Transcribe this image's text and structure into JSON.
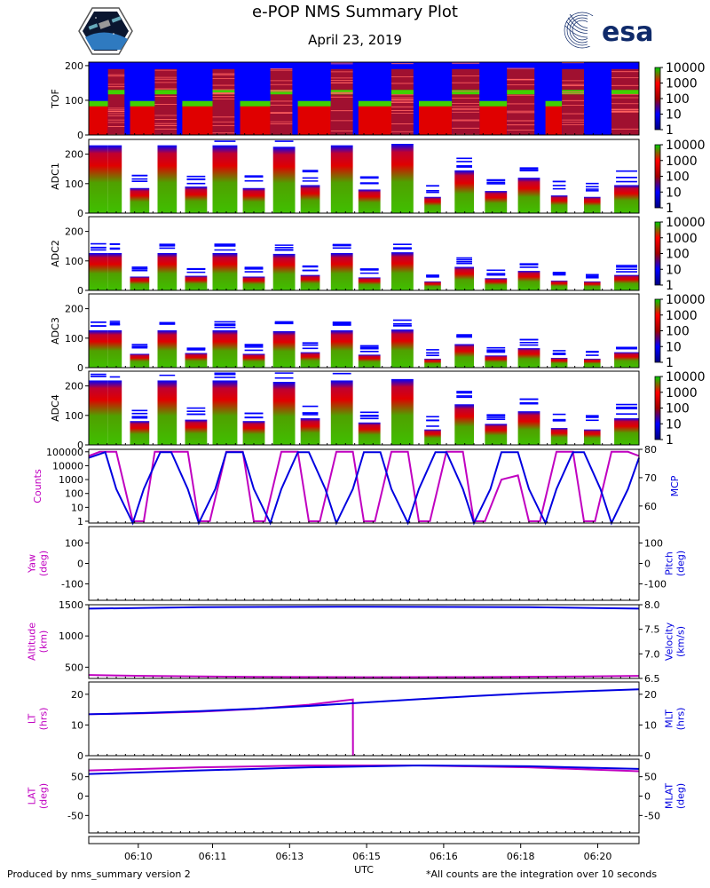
{
  "title": "e-POP NMS Summary Plot",
  "date": "April 23, 2019",
  "logos": {
    "left": "e-POP mission patch",
    "right": "esa"
  },
  "footer": {
    "left": "Produced by nms_summary version 2",
    "right": "*All counts are the integration over 10 seconds"
  },
  "colors": {
    "magenta": "#c000c0",
    "blue": "#0000e0",
    "esa": "#0f2a6a"
  },
  "chart_data": [
    {
      "type": "heatmap",
      "panel": "TOF",
      "ylabel": "TOF",
      "ylim": [
        0,
        210
      ],
      "yticks": [
        0,
        100,
        200
      ],
      "colorbar": {
        "scale": "log",
        "ticks": [
          "1",
          "10",
          "100",
          "1000",
          "10000"
        ]
      }
    },
    {
      "type": "heatmap",
      "panel": "ADC1",
      "ylabel": "ADC1",
      "ylim": [
        0,
        250
      ],
      "yticks": [
        0,
        100,
        200
      ],
      "colorbar": {
        "scale": "log",
        "ticks": [
          "1",
          "10",
          "100",
          "1000",
          "10000"
        ]
      }
    },
    {
      "type": "heatmap",
      "panel": "ADC2",
      "ylabel": "ADC2",
      "ylim": [
        0,
        250
      ],
      "yticks": [
        0,
        100,
        200
      ],
      "colorbar": {
        "scale": "log",
        "ticks": [
          "1",
          "10",
          "100",
          "1000",
          "10000"
        ]
      }
    },
    {
      "type": "heatmap",
      "panel": "ADC3",
      "ylabel": "ADC3",
      "ylim": [
        0,
        250
      ],
      "yticks": [
        0,
        100,
        200
      ],
      "colorbar": {
        "scale": "log",
        "ticks": [
          "1",
          "10",
          "100",
          "1000",
          "10000"
        ]
      }
    },
    {
      "type": "heatmap",
      "panel": "ADC4",
      "ylabel": "ADC4",
      "ylim": [
        0,
        250
      ],
      "yticks": [
        0,
        100,
        200
      ],
      "colorbar": {
        "scale": "log",
        "ticks": [
          "1",
          "10",
          "100",
          "1000",
          "10000"
        ]
      }
    },
    {
      "type": "line",
      "panel": "Counts/MCP",
      "ylabel": "Counts",
      "ylabel_right": "MCP",
      "yticks": [
        "1",
        "10",
        "100",
        "1000",
        "10000",
        "100000"
      ],
      "yticks_right": [
        60,
        70,
        80
      ],
      "ylim_right": [
        54,
        80
      ],
      "series": [
        {
          "name": "Counts",
          "color": "magenta",
          "x": [
            0,
            0.02,
            0.05,
            0.08,
            0.1,
            0.12,
            0.15,
            0.18,
            0.2,
            0.22,
            0.25,
            0.28,
            0.3,
            0.32,
            0.35,
            0.38,
            0.4,
            0.42,
            0.45,
            0.48,
            0.5,
            0.52,
            0.55,
            0.58,
            0.6,
            0.62,
            0.65,
            0.68,
            0.7,
            0.72,
            0.75,
            0.78,
            0.8,
            0.82,
            0.85,
            0.88,
            0.9,
            0.92,
            0.95,
            0.98,
            1.0
          ],
          "y": [
            50000,
            100000,
            100000,
            1,
            1,
            100000,
            100000,
            100000,
            1,
            1,
            100000,
            100000,
            1,
            1,
            100000,
            100000,
            1,
            1,
            100000,
            100000,
            1,
            1,
            100000,
            100000,
            1,
            1,
            100000,
            100000,
            1,
            1,
            1000,
            2000,
            1,
            1,
            100000,
            100000,
            1,
            1,
            100000,
            100000,
            50000
          ]
        },
        {
          "name": "MCP",
          "color": "blue",
          "x": [
            0,
            0.03,
            0.05,
            0.08,
            0.1,
            0.13,
            0.15,
            0.18,
            0.2,
            0.23,
            0.25,
            0.28,
            0.3,
            0.33,
            0.35,
            0.38,
            0.4,
            0.43,
            0.45,
            0.48,
            0.5,
            0.53,
            0.55,
            0.58,
            0.6,
            0.63,
            0.65,
            0.68,
            0.7,
            0.73,
            0.75,
            0.78,
            0.8,
            0.83,
            0.85,
            0.88,
            0.9,
            0.93,
            0.95,
            0.98,
            1.0
          ],
          "y": [
            77,
            79,
            66,
            54,
            66,
            79,
            79,
            66,
            54,
            66,
            79,
            79,
            66,
            54,
            66,
            79,
            79,
            66,
            54,
            66,
            79,
            79,
            66,
            54,
            66,
            79,
            79,
            66,
            54,
            66,
            79,
            79,
            66,
            54,
            66,
            79,
            79,
            66,
            54,
            66,
            77
          ]
        }
      ]
    },
    {
      "type": "line",
      "panel": "Yaw/Pitch",
      "ylabel": "Yaw\n(deg)",
      "ylabel_right": "Pitch\n(deg)",
      "ylim": [
        -180,
        180
      ],
      "yticks": [
        -100,
        0,
        100
      ],
      "yticks_right": [
        -100,
        0,
        100
      ],
      "series": []
    },
    {
      "type": "line",
      "panel": "Altitude/Velocity",
      "ylabel": "Altitude\n(km)",
      "ylabel_right": "Velocity\n(km/s)",
      "ylim": [
        320,
        1500
      ],
      "yticks": [
        500,
        1000,
        1500
      ],
      "ylim_right": [
        6.5,
        8.0
      ],
      "yticks_right": [
        "6.5",
        "7.0",
        "7.5",
        "8.0"
      ],
      "series": [
        {
          "name": "Altitude",
          "color": "magenta",
          "x": [
            0,
            0.1,
            0.3,
            0.5,
            0.7,
            0.9,
            1.0
          ],
          "y": [
            375,
            360,
            345,
            340,
            342,
            352,
            360
          ]
        },
        {
          "name": "Velocity",
          "color": "blue",
          "x": [
            0,
            0.2,
            0.5,
            0.8,
            1.0
          ],
          "y": [
            7.92,
            7.95,
            7.96,
            7.95,
            7.92
          ]
        }
      ]
    },
    {
      "type": "line",
      "panel": "LT/MLT",
      "ylabel": "LT\n(hrs)",
      "ylabel_right": "MLT\n(hrs)",
      "ylim": [
        0,
        24
      ],
      "yticks": [
        0,
        10,
        20
      ],
      "yticks_right": [
        0,
        10,
        20
      ],
      "series": [
        {
          "name": "LT",
          "color": "magenta",
          "x": [
            0,
            0.1,
            0.2,
            0.3,
            0.4,
            0.48,
            0.4801,
            0.4802
          ],
          "y": [
            13.5,
            13.8,
            14.3,
            15.2,
            16.6,
            18.3,
            8,
            0
          ]
        },
        {
          "name": "MLT",
          "color": "blue",
          "x": [
            0,
            0.1,
            0.2,
            0.3,
            0.4,
            0.5,
            0.6,
            0.7,
            0.8,
            0.9,
            1.0
          ],
          "y": [
            13.5,
            13.9,
            14.5,
            15.3,
            16.2,
            17.3,
            18.4,
            19.4,
            20.3,
            21.0,
            21.6
          ]
        }
      ]
    },
    {
      "type": "line",
      "panel": "LAT/MLAT",
      "ylabel": "LAT\n(deg)",
      "ylabel_right": "MLAT\n(deg)",
      "ylim": [
        -95,
        95
      ],
      "yticks": [
        -50,
        0,
        50
      ],
      "yticks_right": [
        -50,
        0,
        50
      ],
      "series": [
        {
          "name": "LAT",
          "color": "magenta",
          "x": [
            0,
            0.2,
            0.4,
            0.6,
            0.8,
            1.0
          ],
          "y": [
            66,
            74,
            79,
            79,
            74,
            64
          ]
        },
        {
          "name": "MLAT",
          "color": "blue",
          "x": [
            0,
            0.2,
            0.4,
            0.6,
            0.8,
            1.0
          ],
          "y": [
            57,
            66,
            74,
            79,
            77,
            70
          ]
        }
      ]
    }
  ],
  "xaxis": {
    "label": "UTC",
    "ticks": [
      "06:10",
      "06:11",
      "06:13",
      "06:15",
      "06:16",
      "06:18",
      "06:20"
    ]
  }
}
